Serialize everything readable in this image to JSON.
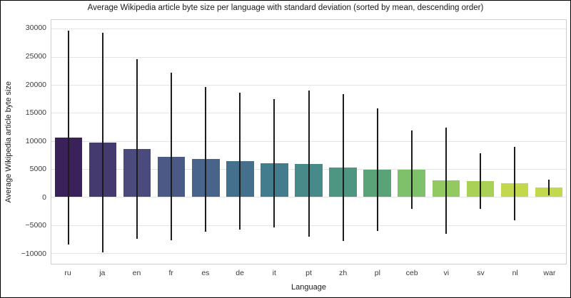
{
  "chart_data": {
    "type": "bar",
    "title": "Average Wikipedia article byte size per language with standard deviation (sorted by mean, descending order)",
    "xlabel": "Language",
    "ylabel": "Average Wikipedia article byte size",
    "categories": [
      "ru",
      "ja",
      "en",
      "fr",
      "es",
      "de",
      "it",
      "pt",
      "zh",
      "pl",
      "ceb",
      "vi",
      "sv",
      "nl",
      "war"
    ],
    "series": [
      {
        "name": "mean article byte size",
        "values": [
          10600,
          9700,
          8550,
          7200,
          6750,
          6400,
          6000,
          5950,
          5300,
          4900,
          4850,
          2900,
          2850,
          2400,
          1650
        ]
      },
      {
        "name": "standard deviation",
        "values": [
          19100,
          19600,
          16050,
          14950,
          12900,
          12250,
          11400,
          13000,
          13100,
          10950,
          7000,
          9450,
          4950,
          6500,
          1400
        ]
      }
    ],
    "bar_colors": [
      "#3b2159",
      "#453a6e",
      "#4a4a7d",
      "#4a5a85",
      "#49648a",
      "#45708d",
      "#437c8d",
      "#48898a",
      "#4f9682",
      "#5aa378",
      "#7fc16a",
      "#92c961",
      "#a9d156",
      "#c3d84d"
    ],
    "war_color": "#c3d84d",
    "errorbar_color": "#1c1c1c",
    "ytick_values": [
      30000,
      25000,
      20000,
      15000,
      10000,
      5000,
      0,
      -5000,
      -10000
    ],
    "ytick_labels": [
      "30000",
      "25000",
      "20000",
      "15000",
      "10000",
      "5000",
      "0",
      "−5000",
      "−10000"
    ],
    "ylim": [
      -11920,
      31580
    ],
    "grid": true,
    "legend": "none",
    "sorted": "by mean, descending"
  }
}
